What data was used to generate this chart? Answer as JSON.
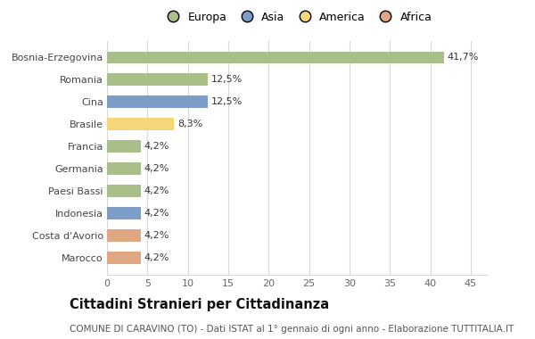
{
  "categories": [
    "Marocco",
    "Costa d'Avorio",
    "Indonesia",
    "Paesi Bassi",
    "Germania",
    "Francia",
    "Brasile",
    "Cina",
    "Romania",
    "Bosnia-Erzegovina"
  ],
  "values": [
    4.2,
    4.2,
    4.2,
    4.2,
    4.2,
    4.2,
    8.3,
    12.5,
    12.5,
    41.7
  ],
  "labels": [
    "4,2%",
    "4,2%",
    "4,2%",
    "4,2%",
    "4,2%",
    "4,2%",
    "8,3%",
    "12,5%",
    "12,5%",
    "41,7%"
  ],
  "colors": [
    "#e0a882",
    "#e0a882",
    "#7b9dc7",
    "#a8bf8a",
    "#a8bf8a",
    "#a8bf8a",
    "#f5d77a",
    "#7b9dc7",
    "#a8bf8a",
    "#a8bf8a"
  ],
  "legend_labels": [
    "Europa",
    "Asia",
    "America",
    "Africa"
  ],
  "legend_colors": [
    "#a8bf8a",
    "#7b9dc7",
    "#f5d77a",
    "#e0a882"
  ],
  "title": "Cittadini Stranieri per Cittadinanza",
  "subtitle": "COMUNE DI CARAVINO (TO) - Dati ISTAT al 1° gennaio di ogni anno - Elaborazione TUTTITALIA.IT",
  "xlim": [
    0,
    47
  ],
  "xticks": [
    0,
    5,
    10,
    15,
    20,
    25,
    30,
    35,
    40,
    45
  ],
  "background_color": "#ffffff",
  "grid_color": "#d8d8d8",
  "bar_height": 0.55,
  "label_fontsize": 8.0,
  "tick_fontsize": 8.0,
  "title_fontsize": 10.5,
  "subtitle_fontsize": 7.5
}
